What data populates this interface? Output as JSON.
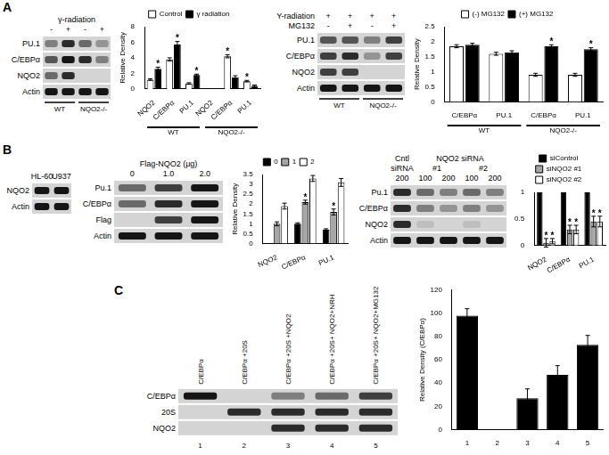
{
  "panel_labels": [
    "A",
    "B",
    "C"
  ],
  "blots": [
    {
      "panel": "A",
      "header": [
        {
          "cells": [
            {
              "text": "γ-radiation",
              "span": [
                0,
                3
              ]
            }
          ]
        },
        {
          "lanes": [
            "-",
            "+",
            "-",
            "+"
          ]
        }
      ],
      "rows": [
        {
          "label": "PU.1",
          "bands": [
            0.4,
            0.8,
            0.5,
            0.3
          ]
        },
        {
          "label": "C/EBPα",
          "bands": [
            0.6,
            0.9,
            0.8,
            0.4
          ]
        },
        {
          "label": "NQO2",
          "bands": [
            0.5,
            0.8,
            0,
            0
          ]
        },
        {
          "label": "Actin",
          "bands": [
            0.9,
            0.9,
            0.9,
            0.9
          ]
        }
      ],
      "footer": [
        {
          "cells": [
            {
              "text": "WT",
              "span": [
                0,
                1
              ]
            },
            {
              "text": "NQO2-/-",
              "span": [
                2,
                3
              ]
            }
          ]
        }
      ]
    },
    {
      "panel": "A",
      "header": [
        {
          "title": "Y-radiation",
          "lanes": [
            "+",
            "+",
            "+",
            "+"
          ]
        },
        {
          "title": "MG132",
          "lanes": [
            "-",
            "+",
            "-",
            "+"
          ]
        }
      ],
      "rows": [
        {
          "label": "PU.1",
          "bands": [
            0.6,
            0.6,
            0.4,
            0.7
          ]
        },
        {
          "label": "C/EBPα",
          "bands": [
            0.7,
            0.8,
            0.3,
            0.7
          ]
        },
        {
          "label": "NQO2",
          "bands": [
            0.7,
            0.7,
            0,
            0
          ]
        },
        {
          "label": "Actin",
          "bands": [
            0.9,
            0.9,
            0.9,
            0.9
          ]
        }
      ],
      "footer": [
        {
          "cells": [
            {
              "text": "WT",
              "span": [
                0,
                1
              ]
            },
            {
              "text": "NQO2-/-",
              "span": [
                2,
                3
              ]
            }
          ]
        }
      ]
    },
    {
      "panel": "B",
      "header": [
        {
          "lanes": [
            "HL-60",
            "U937"
          ]
        }
      ],
      "rows": [
        {
          "label": "NQO2",
          "bands": [
            0.9,
            0.9
          ]
        },
        {
          "label": "Actin",
          "bands": [
            0.9,
            0.9
          ]
        }
      ]
    },
    {
      "panel": "B",
      "header": [
        {
          "cells": [
            {
              "text": "Flag-NQO2 (μg)",
              "span": [
                0,
                2
              ]
            }
          ]
        },
        {
          "lanes": [
            "0",
            "1.0",
            "2.0"
          ]
        }
      ],
      "rows": [
        {
          "label": "Pu.1",
          "bands": [
            0.5,
            0.7,
            0.9
          ]
        },
        {
          "label": "C/EBPα",
          "bands": [
            0.5,
            0.8,
            0.9
          ]
        },
        {
          "label": "Flag",
          "bands": [
            0,
            0.7,
            0.9
          ]
        },
        {
          "label": "Actin",
          "bands": [
            0.9,
            0.9,
            0.9
          ]
        }
      ]
    },
    {
      "panel": "B",
      "header": [
        {
          "cells": [
            {
              "text": "Cntl",
              "span": [
                0,
                0
              ]
            },
            {
              "text": "NQO2 siRNA",
              "span": [
                1,
                4
              ]
            }
          ]
        },
        {
          "cells": [
            {
              "text": "siRNA",
              "span": [
                0,
                0
              ]
            },
            {
              "text": "#1",
              "span": [
                1,
                2
              ]
            },
            {
              "text": "#2",
              "span": [
                3,
                4
              ]
            }
          ]
        },
        {
          "lanes": [
            "200",
            "100",
            "200",
            "100",
            "200"
          ]
        }
      ],
      "rows": [
        {
          "label": "Pu.1",
          "bands": [
            0.8,
            0.5,
            0.4,
            0.5,
            0.4
          ]
        },
        {
          "label": "C/EBPα",
          "bands": [
            0.8,
            0.4,
            0.3,
            0.4,
            0.3
          ]
        },
        {
          "label": "NQO2",
          "bands": [
            0.8,
            0.1,
            0,
            0.1,
            0
          ]
        },
        {
          "label": "Actin",
          "bands": [
            0.9,
            0.9,
            0.9,
            0.9,
            0.9
          ]
        }
      ]
    },
    {
      "panel": "C",
      "header": [
        {
          "lanes": [
            "C/EBPα",
            "C/EBPα +20S",
            "C/EBPα +20S +NQO2",
            "C/EBPα +20S+ NQO2+NRH",
            "C/EBPα +20S+ NQO2+MG132"
          ]
        }
      ],
      "rows": [
        {
          "label": "C/EBPα",
          "bands": [
            0.9,
            0,
            0.4,
            0.5,
            0.7
          ]
        },
        {
          "label": "20S",
          "bands": [
            0,
            0.8,
            0.8,
            0.8,
            0.8
          ]
        },
        {
          "label": "NQO2",
          "bands": [
            0,
            0,
            0.8,
            0.8,
            0.8
          ]
        }
      ],
      "footer": [
        {
          "lanes": [
            "1",
            "2",
            "3",
            "4",
            "5"
          ]
        }
      ]
    }
  ],
  "chart_data": [
    {
      "panel": "A",
      "type": "bar",
      "y_label": "Relative Density",
      "categories": [
        "NQO2",
        "C/EBPα",
        "PU.1",
        "NQO2",
        "C/EBPα",
        "PU.1"
      ],
      "series": [
        {
          "name": "Control",
          "color": "#ffffff",
          "values": [
            1.2,
            3.8,
            0.7,
            0,
            4.2,
            1.0
          ],
          "errors": [
            0.1,
            0.2,
            0.1,
            0,
            0.2,
            0.1
          ]
        },
        {
          "name": "γ radiation",
          "color": "#000000",
          "values": [
            2.6,
            5.7,
            1.8,
            0,
            1.5,
            0.4
          ],
          "errors": [
            0.2,
            0.4,
            0.1,
            0,
            0.2,
            0.1
          ]
        }
      ],
      "annotations": [
        {
          "text": "*",
          "category": 0,
          "series": 1
        },
        {
          "text": "*",
          "category": 1,
          "series": 1
        },
        {
          "text": "*",
          "category": 2,
          "series": 1
        },
        {
          "text": "*",
          "category": 4,
          "series": 0
        },
        {
          "text": "*",
          "category": 5,
          "series": 0
        }
      ],
      "groups": [
        {
          "label": "WT",
          "span": [
            0,
            2
          ]
        },
        {
          "label": "NQO2-/-",
          "span": [
            3,
            5
          ]
        }
      ],
      "ylim": [
        0,
        8
      ],
      "yticks": [
        0,
        2,
        4,
        6,
        8
      ],
      "grid": false,
      "legend": "top"
    },
    {
      "panel": "A",
      "type": "bar",
      "y_label": "Relative Density",
      "categories": [
        "C/EBPα",
        "PU.1",
        "C/EBPα",
        "PU.1"
      ],
      "series": [
        {
          "name": "(-) MG132",
          "color": "#ffffff",
          "values": [
            1.85,
            1.6,
            0.9,
            0.9
          ],
          "errors": [
            0.05,
            0.05,
            0.05,
            0.05
          ]
        },
        {
          "name": "(+) MG132",
          "color": "#000000",
          "values": [
            1.9,
            1.65,
            1.85,
            1.75
          ],
          "errors": [
            0.05,
            0.05,
            0.05,
            0.05
          ]
        }
      ],
      "annotations": [
        {
          "text": "*",
          "category": 2,
          "series": 1
        },
        {
          "text": "*",
          "category": 3,
          "series": 1
        }
      ],
      "groups": [
        {
          "label": "WT",
          "span": [
            0,
            1
          ]
        },
        {
          "label": "NQO2-/-",
          "span": [
            2,
            3
          ]
        }
      ],
      "ylim": [
        0,
        2.5
      ],
      "yticks": [
        0,
        0.5,
        1,
        1.5,
        2,
        2.5
      ],
      "grid": false,
      "legend": "top"
    },
    {
      "panel": "B",
      "type": "bar",
      "y_label": "Relative Density",
      "categories": [
        "NQO2",
        "C/EBPα",
        "PU.1"
      ],
      "series": [
        {
          "name": "0",
          "color": "#000000",
          "values": [
            null,
            1.0,
            0.7
          ],
          "errors": [
            null,
            0.05,
            0.05
          ]
        },
        {
          "name": "1",
          "color": "#a6a6a6",
          "values": [
            1.0,
            2.1,
            1.6
          ],
          "errors": [
            0.1,
            0.1,
            0.15
          ]
        },
        {
          "name": "2",
          "color": "#ffffff",
          "values": [
            1.9,
            3.3,
            3.1
          ],
          "errors": [
            0.15,
            0.15,
            0.2
          ]
        }
      ],
      "annotations": [
        {
          "text": "*",
          "category": 1,
          "series": 1
        },
        {
          "text": "*",
          "category": 2,
          "series": 1
        }
      ],
      "ylim": [
        0,
        3.5
      ],
      "yticks": [
        0,
        0.5,
        1,
        1.5,
        2,
        2.5,
        3,
        3.5
      ],
      "grid": false,
      "legend": "top"
    },
    {
      "panel": "B",
      "type": "bar",
      "categories": [
        "NQO2",
        "C/EBPα",
        "PU.1"
      ],
      "series": [
        {
          "name": "siControl",
          "color": "#000000",
          "values": [
            1,
            1,
            1
          ]
        },
        {
          "name": "siNQO2 #1",
          "color": "#a6a6a6",
          "values": [
            0.05,
            0.3,
            0.45
          ],
          "errors": [
            0.08,
            0.08,
            0.1
          ]
        },
        {
          "name": "siNQO2 #2",
          "color": "#ffffff",
          "values": [
            0.08,
            0.3,
            0.45
          ],
          "errors": [
            0.05,
            0.08,
            0.1
          ]
        }
      ],
      "annotations": [
        {
          "text": "*",
          "category": 0,
          "series": 1
        },
        {
          "text": "*",
          "category": 0,
          "series": 2
        },
        {
          "text": "*",
          "category": 1,
          "series": 1
        },
        {
          "text": "*",
          "category": 1,
          "series": 2
        },
        {
          "text": "*",
          "category": 2,
          "series": 1
        },
        {
          "text": "*",
          "category": 2,
          "series": 2
        }
      ],
      "ylim": [
        0,
        1
      ],
      "yticks": [
        0,
        0.5,
        1
      ],
      "grid": false,
      "legend": "top"
    },
    {
      "panel": "C",
      "type": "bar",
      "y_label": "Relative Density (C/EBPα)",
      "categories": [
        "1",
        "2",
        "3",
        "4",
        "5"
      ],
      "series": [
        {
          "name": "C/EBPα",
          "color": "#000000",
          "values": [
            98,
            0,
            27,
            47,
            73
          ],
          "errors": [
            6,
            0,
            8,
            8,
            8
          ]
        }
      ],
      "ylim": [
        0,
        120
      ],
      "yticks": [
        0,
        20,
        40,
        60,
        80,
        100,
        120
      ],
      "grid": false
    }
  ]
}
